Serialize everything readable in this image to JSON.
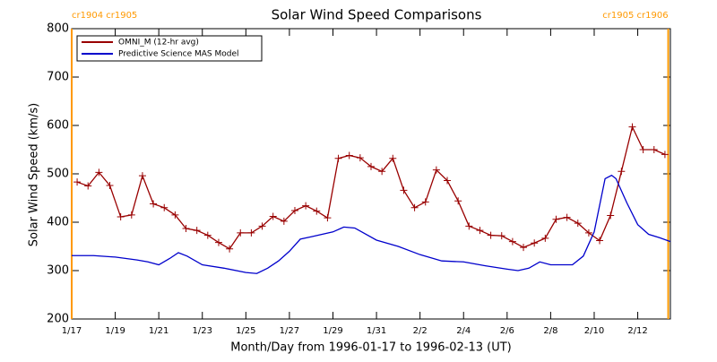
{
  "chart_data": {
    "type": "line",
    "title": "Solar Wind Speed Comparisons",
    "x_label": "Month/Day from 1996-01-17 to 1996-02-13 (UT)",
    "y_label": "Solar Wind Speed (km/s)",
    "xlim": [
      0,
      27.5
    ],
    "ylim": [
      200,
      800
    ],
    "yticks": [
      200,
      300,
      400,
      500,
      600,
      700,
      800
    ],
    "xticks": [
      {
        "value": 0,
        "label": "1/17"
      },
      {
        "value": 2,
        "label": "1/19"
      },
      {
        "value": 4,
        "label": "1/21"
      },
      {
        "value": 6,
        "label": "1/23"
      },
      {
        "value": 8,
        "label": "1/25"
      },
      {
        "value": 10,
        "label": "1/27"
      },
      {
        "value": 12,
        "label": "1/29"
      },
      {
        "value": 14,
        "label": "1/31"
      },
      {
        "value": 16,
        "label": "2/2"
      },
      {
        "value": 18,
        "label": "2/4"
      },
      {
        "value": 20,
        "label": "2/6"
      },
      {
        "value": 22,
        "label": "2/8"
      },
      {
        "value": 24,
        "label": "2/10"
      },
      {
        "value": 26,
        "label": "2/12"
      }
    ],
    "annotations": [
      {
        "x": 0,
        "text": "cr1904 cr1905",
        "color": "#ff9900"
      },
      {
        "x": 27.4,
        "text": "cr1905 cr1906",
        "color": "#ff9900"
      }
    ],
    "legend": "upper left",
    "series": [
      {
        "name": "OMNI_M (12-hr avg)",
        "color": "#990000",
        "markers": true,
        "x": [
          0.25,
          0.75,
          1.25,
          1.75,
          2.25,
          2.75,
          3.25,
          3.75,
          4.25,
          4.75,
          5.25,
          5.75,
          6.25,
          6.75,
          7.25,
          7.75,
          8.25,
          8.75,
          9.25,
          9.75,
          10.25,
          10.75,
          11.25,
          11.75,
          12.25,
          12.75,
          13.25,
          13.75,
          14.25,
          14.75,
          15.25,
          15.75,
          16.25,
          16.75,
          17.25,
          17.75,
          18.25,
          18.75,
          19.25,
          19.75,
          20.25,
          20.75,
          21.25,
          21.75,
          22.25,
          22.75,
          23.25,
          23.75,
          24.25,
          24.75,
          25.25,
          25.75,
          26.25,
          26.75,
          27.25
        ],
        "values": [
          483,
          475,
          503,
          476,
          411,
          415,
          496,
          438,
          430,
          415,
          387,
          383,
          373,
          358,
          345,
          378,
          378,
          392,
          412,
          402,
          424,
          434,
          423,
          409,
          532,
          538,
          533,
          515,
          505,
          532,
          466,
          430,
          442,
          508,
          486,
          444,
          392,
          383,
          373,
          372,
          360,
          348,
          357,
          367,
          406,
          410,
          398,
          378,
          362,
          414,
          505,
          597,
          550,
          550,
          540
        ]
      },
      {
        "name": "Predictive Science MAS Model",
        "color": "#0000cc",
        "markers": false,
        "x": [
          0,
          1,
          2,
          3,
          3.5,
          4,
          4.5,
          4.9,
          5.3,
          6,
          7,
          8,
          8.5,
          9,
          9.5,
          10,
          10.5,
          11,
          12,
          12.5,
          13,
          14,
          15,
          16,
          17,
          18,
          19,
          20,
          20.5,
          21,
          21.5,
          22,
          23,
          23.5,
          24,
          24.5,
          24.8,
          25,
          25.5,
          26,
          26.5,
          27,
          27.5
        ],
        "values": [
          331,
          331,
          328,
          322,
          318,
          312,
          325,
          337,
          330,
          312,
          305,
          296,
          294,
          305,
          320,
          340,
          365,
          370,
          380,
          390,
          388,
          363,
          350,
          333,
          320,
          318,
          310,
          303,
          300,
          305,
          318,
          312,
          312,
          330,
          380,
          490,
          497,
          490,
          440,
          395,
          375,
          368,
          360
        ]
      }
    ]
  }
}
